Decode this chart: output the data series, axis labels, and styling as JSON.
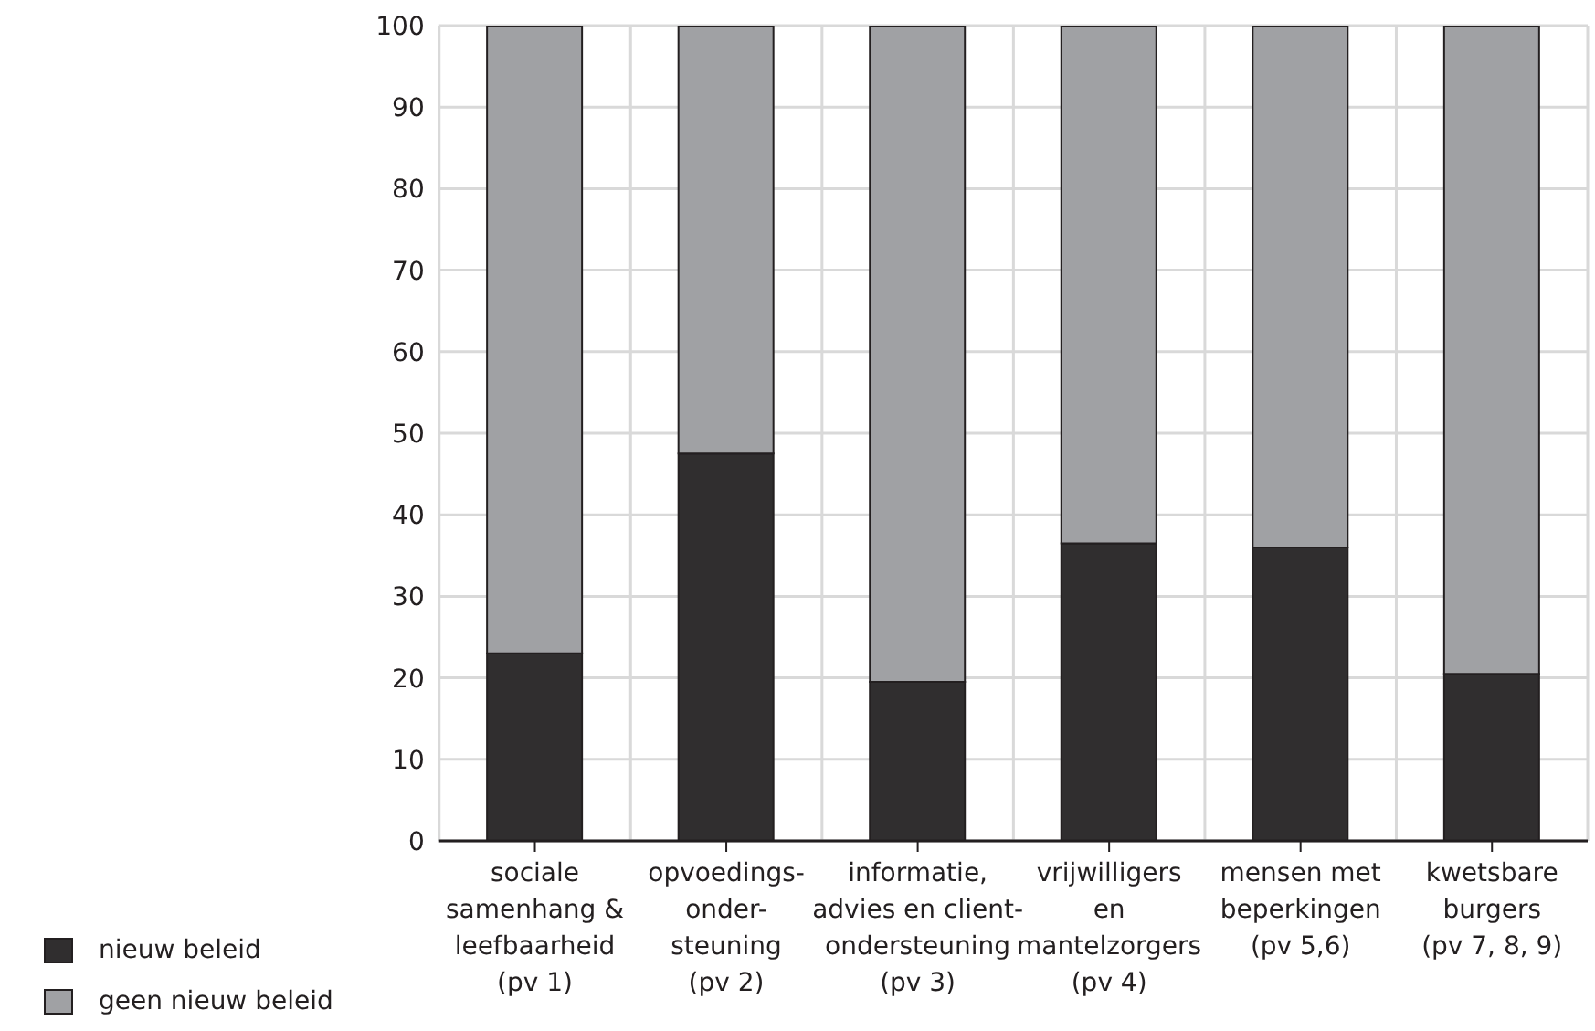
{
  "chart_data": {
    "type": "bar",
    "stacked": true,
    "categories": [
      "sociale\nsamenhang &\nleefbaarheid\n(pv 1)",
      "opvoedings-\nonder-\nsteuning\n(pv 2)",
      "informatie,\nadvies en client-\nondersteuning\n(pv 3)",
      "vrijwilligers\nen\nmantelzorgers\n(pv 4)",
      "mensen met\nbeperkingen\n(pv 5,6)",
      "kwetsbare\nburgers\n(pv 7, 8, 9)"
    ],
    "series": [
      {
        "name": "nieuw beleid",
        "color": "#302e2f",
        "values": [
          23,
          47.5,
          19.5,
          36.5,
          36,
          20.5
        ]
      },
      {
        "name": "geen nieuw beleid",
        "color": "#a0a1a4",
        "values": [
          77,
          52.5,
          80.5,
          63.5,
          64,
          79.5
        ]
      }
    ],
    "ylim": [
      0,
      100
    ],
    "yticks": [
      0,
      10,
      20,
      30,
      40,
      50,
      60,
      70,
      80,
      90,
      100
    ],
    "grid": true,
    "legend": "bottom left"
  }
}
